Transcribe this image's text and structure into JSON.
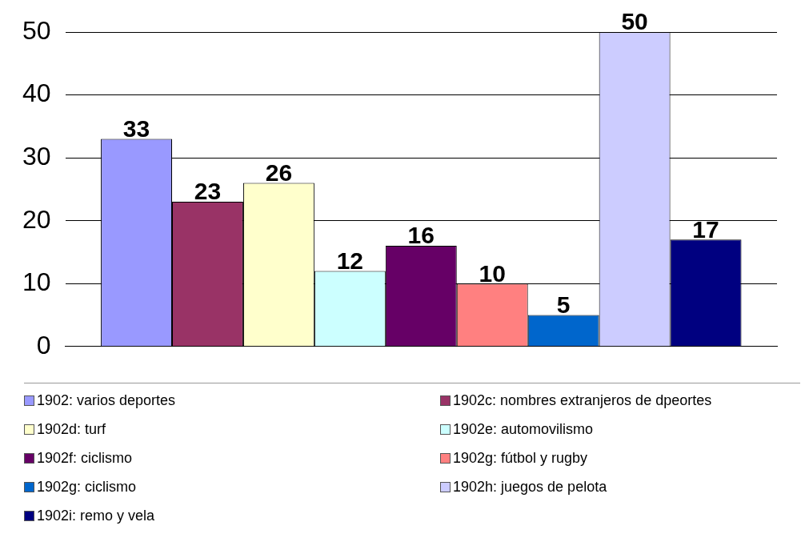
{
  "chart_data": {
    "type": "bar",
    "categories": [
      null
    ],
    "series": [
      {
        "name": "1902: varios deportes",
        "color": "#9999ff",
        "values": [
          33
        ]
      },
      {
        "name": "1902c: nombres extranjeros de dpeortes",
        "color": "#993366",
        "values": [
          23
        ]
      },
      {
        "name": "1902d: turf",
        "color": "#ffffcc",
        "values": [
          26
        ]
      },
      {
        "name": "1902e: automovilismo",
        "color": "#ccffff",
        "values": [
          12
        ]
      },
      {
        "name": "1902f: ciclismo",
        "color": "#660066",
        "values": [
          16
        ]
      },
      {
        "name": "1902g: fútbol y rugby",
        "color": "#ff8080",
        "values": [
          10
        ]
      },
      {
        "name": "1902g: ciclismo",
        "color": "#0066cc",
        "values": [
          5
        ]
      },
      {
        "name": "1902h: juegos de pelota",
        "color": "#ccccff",
        "values": [
          50
        ]
      },
      {
        "name": "1902i: remo y vela",
        "color": "#000080",
        "values": [
          17
        ]
      }
    ],
    "ylim": [
      0,
      50
    ],
    "yticks": [
      0,
      10,
      20,
      30,
      40,
      50
    ],
    "grid": "y",
    "legend": "bottom",
    "data_labels": true
  }
}
